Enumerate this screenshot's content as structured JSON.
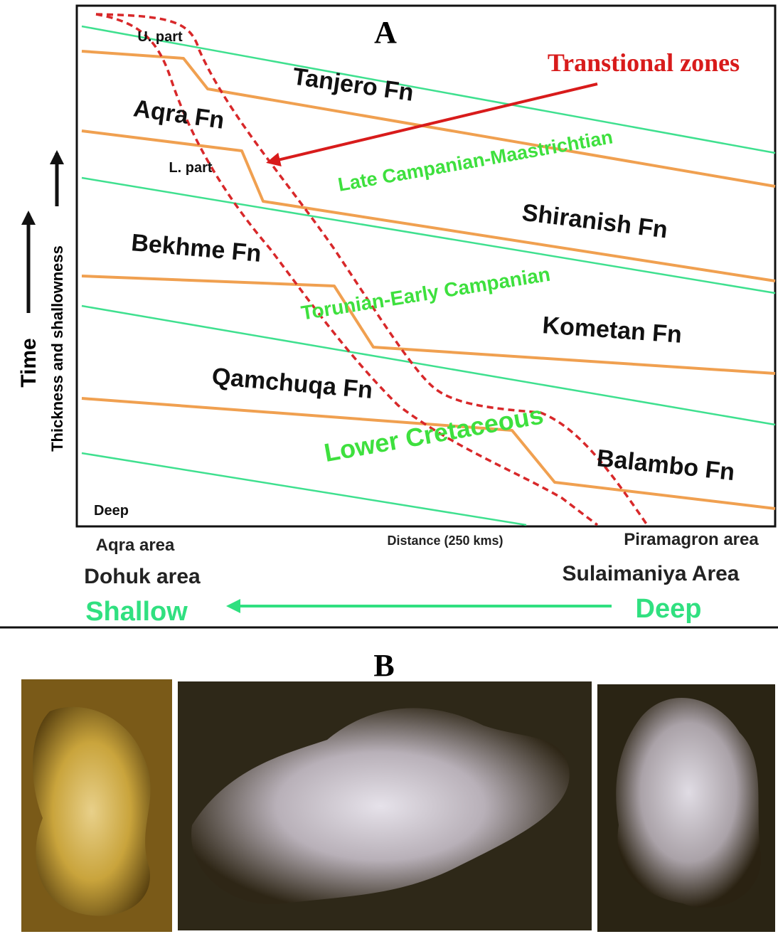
{
  "panel_a": {
    "label": "A",
    "formations": [
      "Tanjero Fn",
      "Aqra Fn",
      "Shiranish Fn",
      "Bekhme Fn",
      "Kometan Fn",
      "Qamchuqa Fn",
      "Balambo Fn"
    ],
    "ages": [
      "Late Campanian-Maastrichtian",
      "Torunian-Early  Campanian",
      "Lower Cretaceous"
    ],
    "annotations": {
      "u_part": "U. part",
      "l_part": "L. part",
      "transitional_zones": "Transtional zones"
    },
    "axis": {
      "time": "Time",
      "thickness": "Thickness and shallowness",
      "corner": "Deep",
      "distance": "Distance (250 kms)"
    },
    "areas": {
      "aqra": "Aqra area",
      "piramagron": "Piramagron area",
      "dohuk": "Dohuk area",
      "sulaimaniya": "Sulaimaniya Area"
    },
    "direction": {
      "shallow": "Shallow",
      "deep": "Deep"
    }
  },
  "panel_b": {
    "label": "B"
  }
}
